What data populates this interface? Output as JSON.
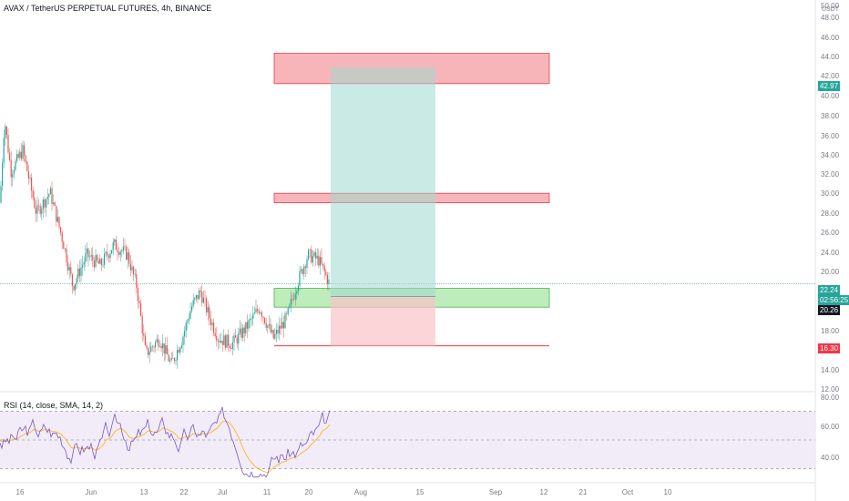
{
  "title": "AVAX / TetherUS PERPETUAL FUTURES, 4h, BINANCE",
  "indicator": "RSI (14, close, SMA, 14, 2)",
  "currency": "USDT",
  "badges": {
    "target": "42.97",
    "last_price": "22.24",
    "countdown": "02:56:25",
    "rsi_level": "20.26",
    "stop": "16.30"
  },
  "price_ticks": [
    "50.00",
    "48.00",
    "46.00",
    "44.00",
    "42.00",
    "40.00",
    "38.00",
    "36.00",
    "34.00",
    "32.00",
    "30.00",
    "28.00",
    "26.00",
    "24.00",
    "20.00",
    "18.00",
    "16.00",
    "14.00",
    "12.00"
  ],
  "rsi_ticks": [
    "80.00",
    "60.00",
    "40.00"
  ],
  "time_ticks": [
    "16",
    "Jun",
    "13",
    "22",
    "Jul",
    "11",
    "20",
    "Aug",
    "15",
    "Sep",
    "12",
    "21",
    "Oct",
    "10"
  ],
  "colors": {
    "up": "#26a69a",
    "down": "#ef5350",
    "rsi": "#7e57c2",
    "rsi_ma": "#f7b500",
    "zone_red": "#f7a8ad",
    "zone_green": "#a8e6a3",
    "profit": "#9fd9cf",
    "loss": "#f9c3c8",
    "accent": "#26a69a",
    "stop": "#f23645"
  },
  "chart_data": {
    "type": "candlestick",
    "title": "AVAX / TetherUS PERPETUAL FUTURES, 4h, BINANCE",
    "ylabel": "USDT",
    "ylim": [
      12,
      50
    ],
    "x_categories": [
      "16",
      "Jun",
      "13",
      "22",
      "Jul",
      "11",
      "20",
      "Aug",
      "15",
      "Sep",
      "12",
      "21",
      "Oct",
      "10"
    ],
    "price_path_approx": [
      {
        "x": "16",
        "price": 33
      },
      {
        "x": "Jun",
        "price": 26
      },
      {
        "x": "13",
        "price": 15
      },
      {
        "x": "22",
        "price": 21
      },
      {
        "x": "Jul",
        "price": 17
      },
      {
        "x": "11",
        "price": 18
      },
      {
        "x": "20",
        "price": 25.5
      },
      {
        "x": "last",
        "price": 22.24
      }
    ],
    "zones": [
      {
        "name": "resistance",
        "from": 41.4,
        "to": 44.3
      },
      {
        "name": "resistance",
        "from": 30.0,
        "to": 30.9
      },
      {
        "name": "support",
        "from": 20.0,
        "to": 21.8
      }
    ],
    "position": {
      "entry": 21.0,
      "target": 42.97,
      "stop": 16.3
    },
    "rsi": {
      "params": "14, close, SMA, 14, 2",
      "ylim": [
        20,
        80
      ],
      "bands": [
        30,
        50,
        70
      ]
    }
  }
}
